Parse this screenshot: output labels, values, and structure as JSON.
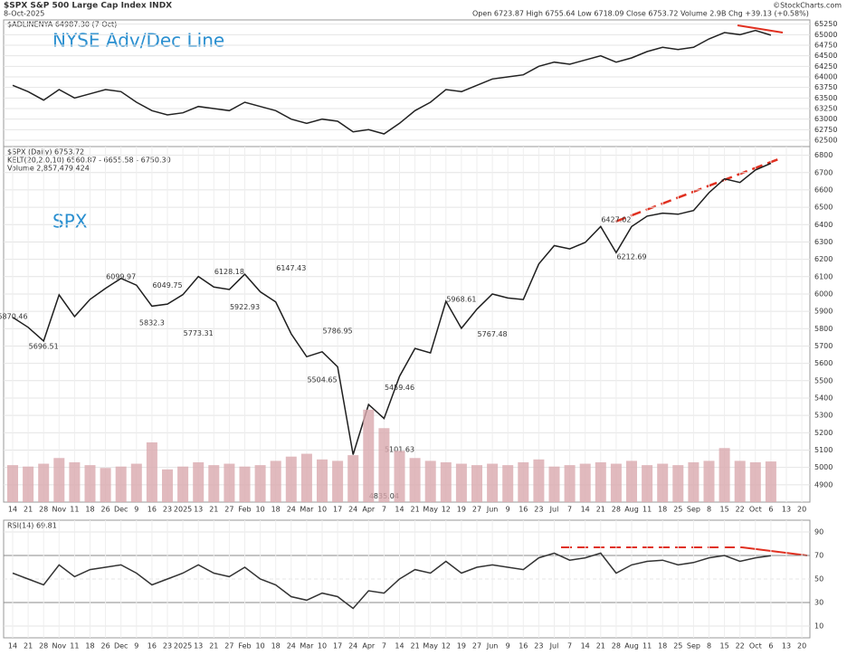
{
  "header": {
    "symbol": "$SPX S&P 500 Large Cap Index INDX",
    "date": "8-Oct-2025",
    "quote": "Open 6723.87  High 6755.64  Low 6718.09  Close 6753.72  Volume 2.9B  Chg +39.13 (+0.58%)",
    "credit": "©StockCharts.com"
  },
  "chart_data": [
    {
      "type": "line",
      "legend": "$ADLINENYA 64987.30 (7 Oct)",
      "annotation": "NYSE Adv/Dec Line",
      "series": [
        {
          "color": "#222222",
          "values": [
            63800,
            63650,
            63450,
            63700,
            63500,
            63600,
            63700,
            63650,
            63400,
            63200,
            63100,
            63150,
            63300,
            63250,
            63200,
            63400,
            63300,
            63200,
            63000,
            62900,
            63000,
            62950,
            62700,
            62750,
            62650,
            62900,
            63200,
            63400,
            63700,
            63650,
            63800,
            63950,
            64000,
            64050,
            64250,
            64350,
            64300,
            64400,
            64500,
            64350,
            64450,
            64600,
            64700,
            64650,
            64700,
            64900,
            65050,
            65000,
            65100,
            64987.3,
            null,
            null
          ]
        }
      ],
      "ylim": [
        62350,
        65350
      ],
      "yticks": [
        62500,
        62750,
        63000,
        63250,
        63500,
        63750,
        64000,
        64250,
        64500,
        64750,
        65000,
        65250
      ],
      "grid": true
    },
    {
      "type": "line",
      "legend": "$SPX (Daily) 6753.72",
      "legend2": "KELT(20,2.0,10) 6560.87 - 6655.58 - 6750.30",
      "legend3": "Volume 2,857,479,424",
      "annotation": "SPX",
      "categories": [
        "14",
        "21",
        "28",
        "Nov",
        "11",
        "18",
        "26",
        "Dec",
        "9",
        "16",
        "23",
        "2025",
        "13",
        "21",
        "27",
        "Feb",
        "10",
        "18",
        "24",
        "Mar",
        "10",
        "17",
        "24",
        "Apr",
        "7",
        "14",
        "21",
        "May",
        "12",
        "19",
        "27",
        "Jun",
        "9",
        "16",
        "23",
        "Jul",
        "7",
        "14",
        "21",
        "28",
        "Aug",
        "11",
        "18",
        "25",
        "Sep",
        "8",
        "15",
        "22",
        "Oct",
        "6",
        "13",
        "20"
      ],
      "series": [
        {
          "color": "#1f1f1f",
          "values": [
            5865,
            5808,
            5729,
            5995,
            5870,
            5969,
            6032,
            6090,
            6051,
            5930,
            5942,
            5996,
            6101,
            6040,
            6026,
            6114,
            6013,
            5954,
            5770,
            5638,
            5667,
            5580,
            5074,
            5363,
            5282,
            5525,
            5686,
            5660,
            5958,
            5802,
            5912,
            6000,
            5977,
            5968,
            6173,
            6279,
            6260,
            6297,
            6389,
            6238,
            6389,
            6449,
            6466,
            6460,
            6481,
            6584,
            6664,
            6643,
            6715,
            6753.72,
            null,
            null
          ]
        }
      ],
      "price_labels": [
        {
          "x": 0,
          "value": 5870.46
        },
        {
          "x": 2,
          "value": 5696.51
        },
        {
          "x": 7,
          "value": 6099.97
        },
        {
          "x": 10,
          "value": 6049.75
        },
        {
          "x": 9,
          "value": 5832.3
        },
        {
          "x": 12,
          "value": 5773.31
        },
        {
          "x": 14,
          "value": 6128.18
        },
        {
          "x": 15,
          "value": 5922.93
        },
        {
          "x": 18,
          "value": 6147.43
        },
        {
          "x": 21,
          "value": 5786.95
        },
        {
          "x": 20,
          "value": 5504.65
        },
        {
          "x": 25,
          "value": 5459.46
        },
        {
          "x": 25,
          "value": 5101.63
        },
        {
          "x": 24,
          "value": 4835.04
        },
        {
          "x": 29,
          "value": 5968.61
        },
        {
          "x": 31,
          "value": 5767.48
        },
        {
          "x": 39,
          "value": 6427.02
        },
        {
          "x": 40,
          "value": 6212.69
        }
      ],
      "ylim": [
        4800,
        6850
      ],
      "yticks": [
        4900,
        5000,
        5100,
        5200,
        5300,
        5400,
        5500,
        5600,
        5700,
        5800,
        5900,
        6000,
        6100,
        6200,
        6300,
        6400,
        6500,
        6600,
        6700,
        6800
      ],
      "grid": true
    },
    {
      "type": "bar",
      "color": "#d9a9ae",
      "values": [
        2600000000,
        2500000000,
        2700000000,
        3100000000,
        2800000000,
        2600000000,
        2400000000,
        2500000000,
        2700000000,
        4200000000,
        2300000000,
        2500000000,
        2800000000,
        2600000000,
        2700000000,
        2500000000,
        2600000000,
        2900000000,
        3200000000,
        3400000000,
        3000000000,
        2900000000,
        3300000000,
        6500000000,
        5200000000,
        3600000000,
        3100000000,
        2900000000,
        2800000000,
        2700000000,
        2600000000,
        2700000000,
        2600000000,
        2800000000,
        3000000000,
        2500000000,
        2600000000,
        2700000000,
        2800000000,
        2700000000,
        2900000000,
        2600000000,
        2700000000,
        2600000000,
        2800000000,
        2900000000,
        3800000000,
        2900000000,
        2800000000,
        2857479424,
        null,
        null
      ],
      "ylim": [
        0,
        25000000000
      ]
    },
    {
      "type": "line",
      "legend": "RSI(14) 69.81",
      "categories": [
        "14",
        "21",
        "28",
        "Nov",
        "11",
        "18",
        "26",
        "Dec",
        "9",
        "16",
        "23",
        "2025",
        "13",
        "21",
        "27",
        "Feb",
        "10",
        "18",
        "24",
        "Mar",
        "10",
        "17",
        "24",
        "Apr",
        "7",
        "14",
        "21",
        "May",
        "12",
        "19",
        "27",
        "Jun",
        "9",
        "16",
        "23",
        "Jul",
        "7",
        "14",
        "21",
        "28",
        "Aug",
        "11",
        "18",
        "25",
        "Sep",
        "8",
        "15",
        "22",
        "Oct",
        "6",
        "13",
        "20"
      ],
      "series": [
        {
          "color": "#333333",
          "values": [
            55,
            50,
            45,
            62,
            52,
            58,
            60,
            62,
            55,
            45,
            50,
            55,
            62,
            55,
            52,
            60,
            50,
            45,
            35,
            32,
            38,
            35,
            25,
            40,
            38,
            50,
            58,
            55,
            65,
            55,
            60,
            62,
            60,
            58,
            68,
            72,
            66,
            68,
            72,
            55,
            62,
            65,
            66,
            62,
            64,
            68,
            70,
            65,
            68,
            69.81,
            null,
            null
          ]
        }
      ],
      "ylim": [
        0,
        100
      ],
      "yticks": [
        10,
        30,
        50,
        70,
        90
      ],
      "grid": true
    }
  ]
}
